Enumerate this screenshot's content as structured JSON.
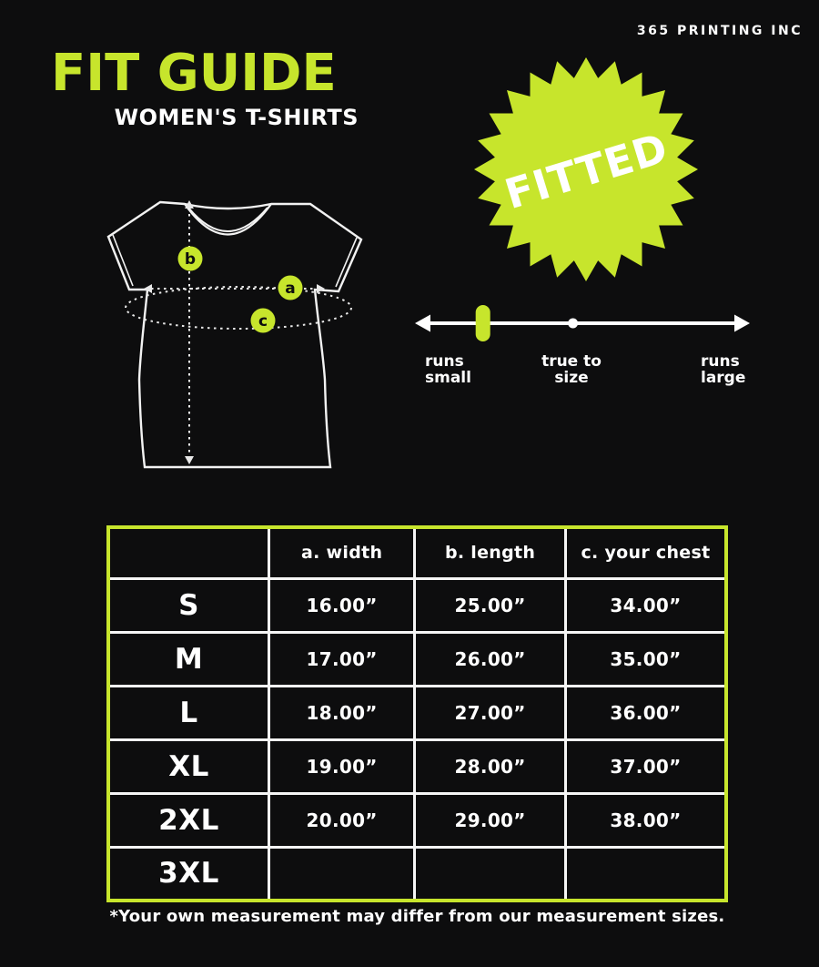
{
  "brand": "365 PRINTING INC",
  "header": {
    "title": "FIT GUIDE",
    "subtitle": "WOMEN'S T-SHIRTS"
  },
  "badge": {
    "label": "FITTED"
  },
  "diagram": {
    "markers": [
      {
        "id": "a",
        "label": "a"
      },
      {
        "id": "b",
        "label": "b"
      },
      {
        "id": "c",
        "label": "c"
      }
    ]
  },
  "fit_scale": {
    "labels": {
      "small": {
        "line1": "runs",
        "line2": "small"
      },
      "true": {
        "line1": "true to",
        "line2": "size"
      },
      "large": {
        "line1": "runs",
        "line2": "large"
      }
    },
    "indicator_position_pct": 18.4,
    "center_tick_pct": 47
  },
  "size_chart": {
    "columns": {
      "width": "a. width",
      "length": "b. length",
      "chest": "c. your chest"
    },
    "rows": [
      {
        "size": "S",
        "width": "16.00”",
        "length": "25.00”",
        "chest": "34.00”"
      },
      {
        "size": "M",
        "width": "17.00”",
        "length": "26.00”",
        "chest": "35.00”"
      },
      {
        "size": "L",
        "width": "18.00”",
        "length": "27.00”",
        "chest": "36.00”"
      },
      {
        "size": "XL",
        "width": "19.00”",
        "length": "28.00”",
        "chest": "37.00”"
      },
      {
        "size": "2XL",
        "width": "20.00”",
        "length": "29.00”",
        "chest": "38.00”"
      },
      {
        "size": "3XL",
        "width": "",
        "length": "",
        "chest": ""
      }
    ]
  },
  "footnote": "*Your own measurement may differ from our measurement sizes.",
  "colors": {
    "accent": "#c7e52c",
    "background": "#0d0d0e",
    "text": "#ffffff"
  }
}
